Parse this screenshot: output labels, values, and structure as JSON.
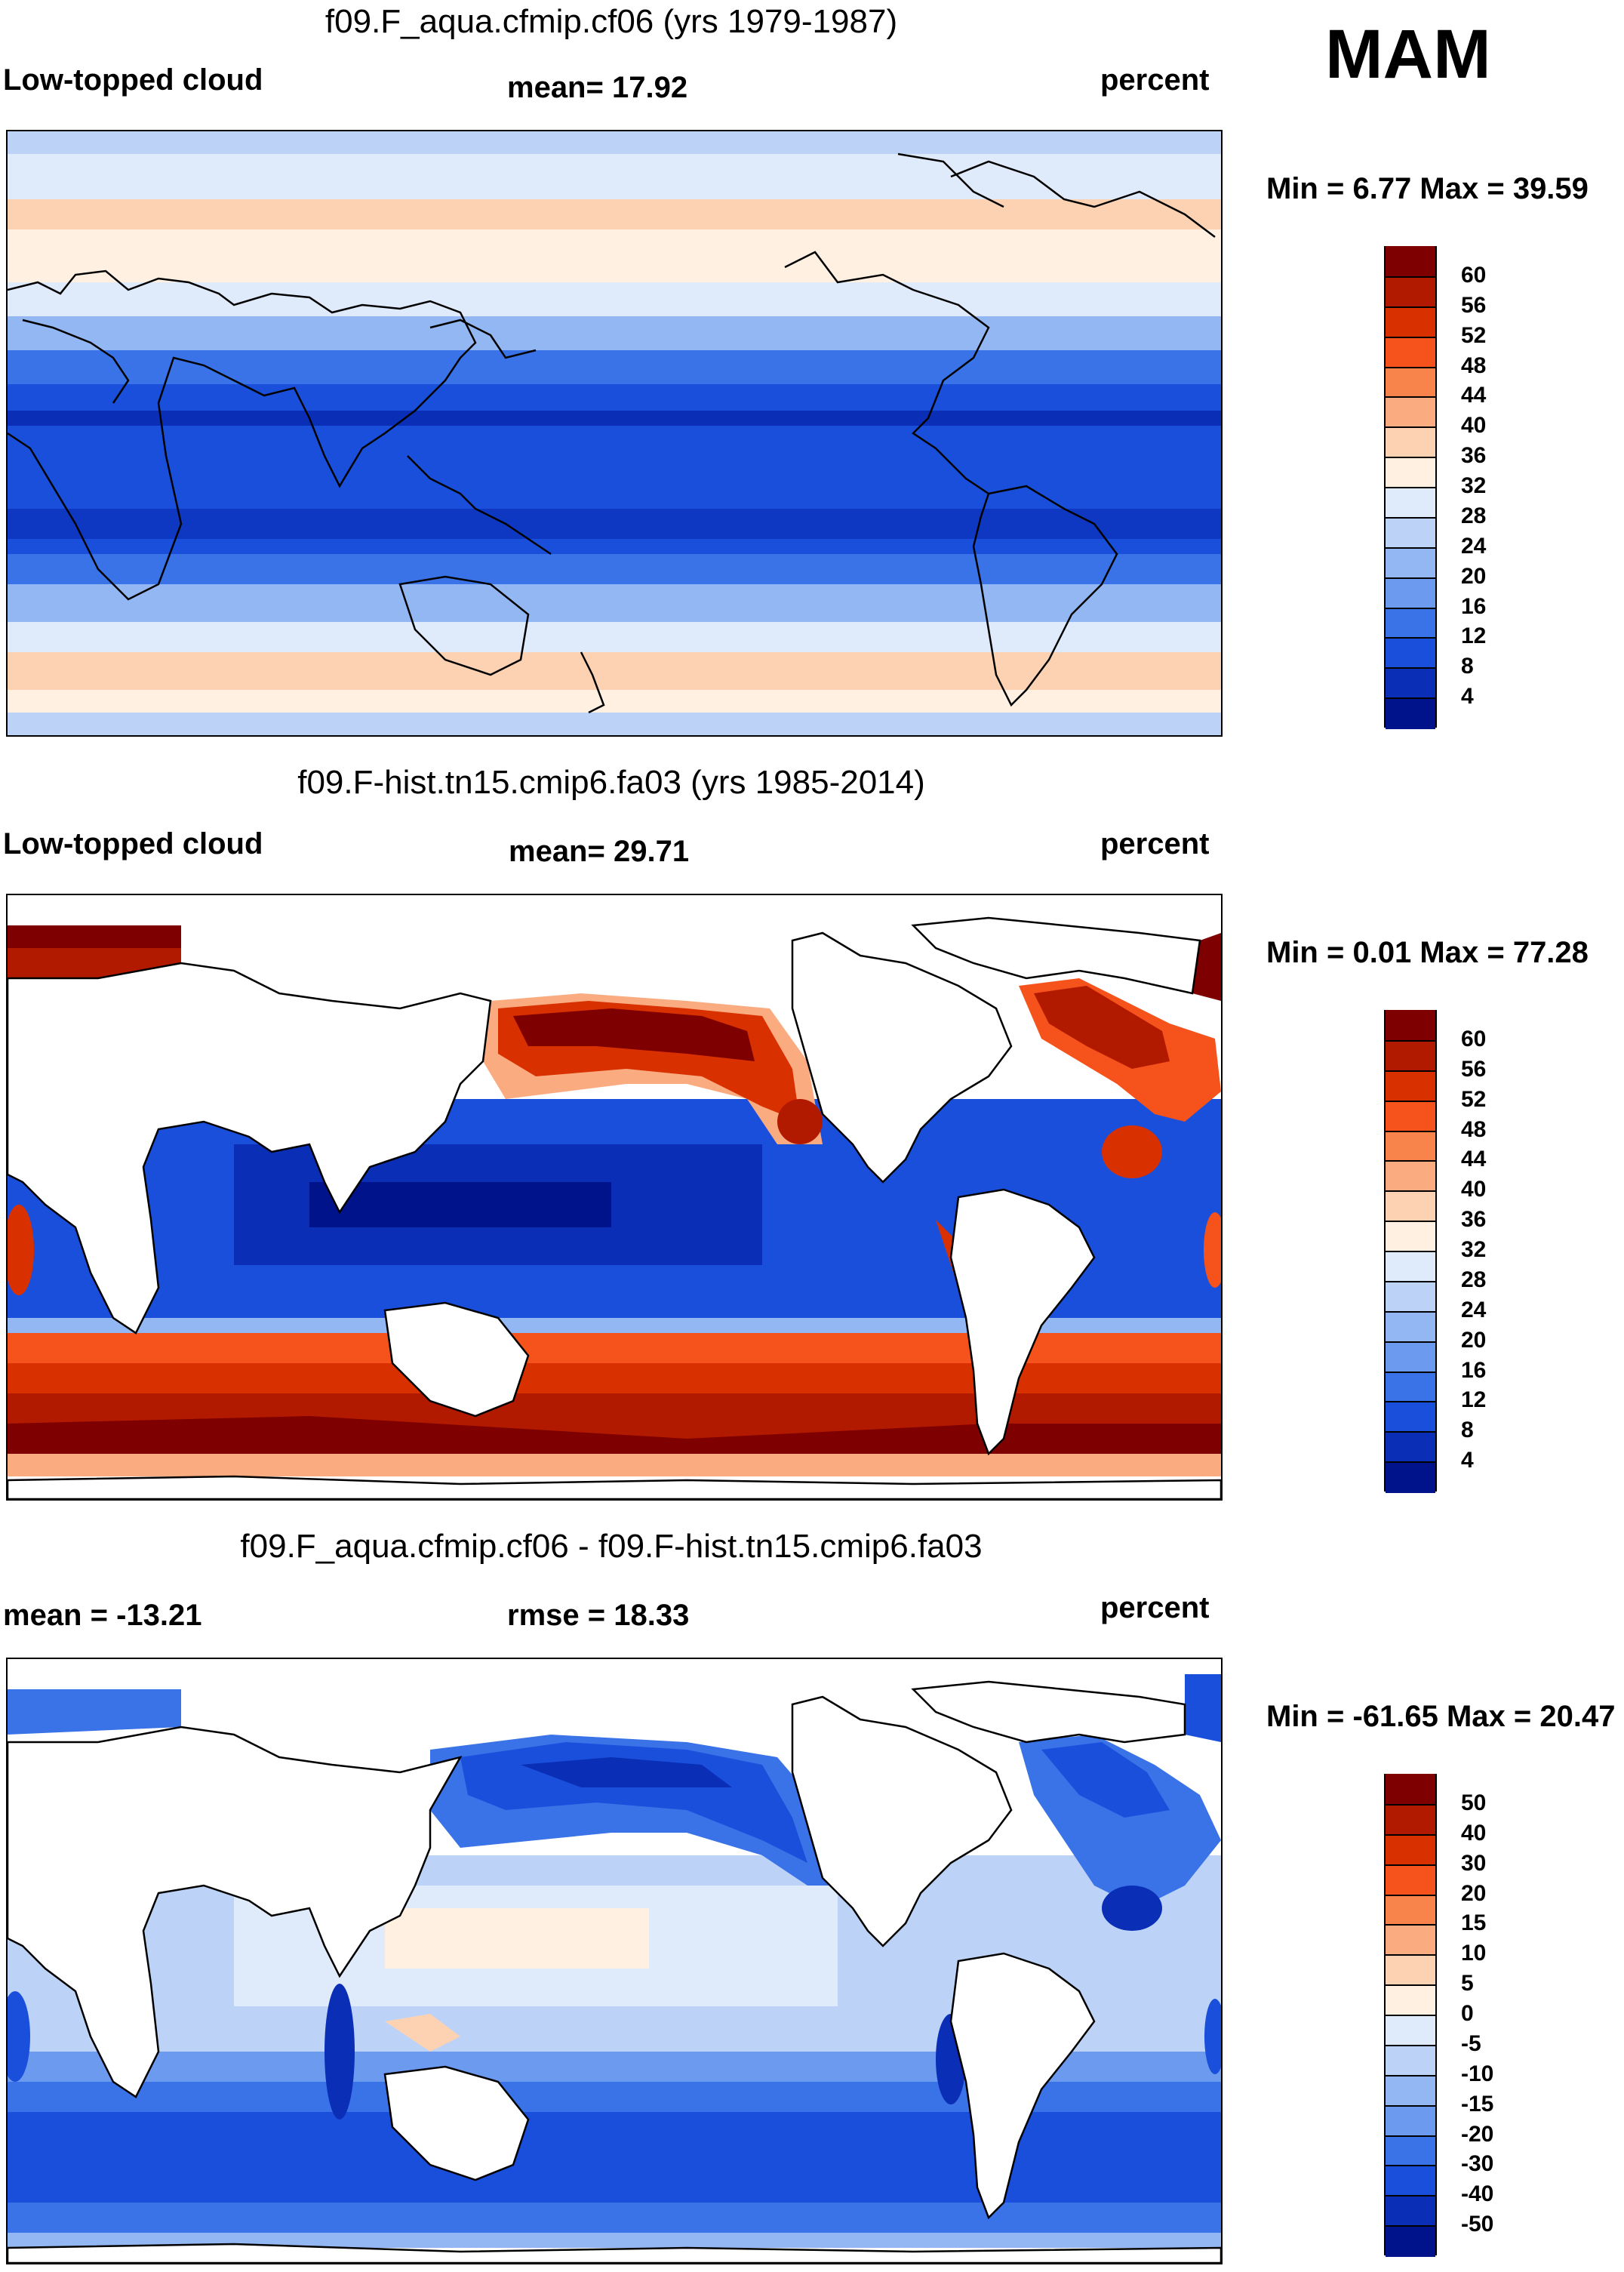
{
  "season": "MAM",
  "panels": [
    {
      "title": "f09.F_aqua.cfmip.cf06 (yrs 1979-1987)",
      "left_label": "Low-topped cloud",
      "center_label": "mean=  17.92",
      "right_label": "percent",
      "minmax": "Min =   6.77 Max =  39.59",
      "colorbar": {
        "ticks": [
          "60",
          "56",
          "52",
          "48",
          "44",
          "40",
          "36",
          "32",
          "28",
          "24",
          "20",
          "16",
          "12",
          "8",
          "4"
        ],
        "colors": [
          "#7f0000",
          "#b21a00",
          "#d93000",
          "#f5521c",
          "#f8844c",
          "#fbab80",
          "#fdd2b2",
          "#fff0e2",
          "#dfeafb",
          "#bcd3f7",
          "#93b7f2",
          "#6b9aee",
          "#3a72e8",
          "#1a4fdc",
          "#0a2eb6",
          "#00138a"
        ]
      }
    },
    {
      "title": "f09.F-hist.tn15.cmip6.fa03 (yrs 1985-2014)",
      "left_label": "Low-topped cloud",
      "center_label": "mean=  29.71",
      "right_label": "percent",
      "minmax": "Min =   0.01 Max =  77.28",
      "colorbar": {
        "ticks": [
          "60",
          "56",
          "52",
          "48",
          "44",
          "40",
          "36",
          "32",
          "28",
          "24",
          "20",
          "16",
          "12",
          "8",
          "4"
        ],
        "colors": [
          "#7f0000",
          "#b21a00",
          "#d93000",
          "#f5521c",
          "#f8844c",
          "#fbab80",
          "#fdd2b2",
          "#fff0e2",
          "#dfeafb",
          "#bcd3f7",
          "#93b7f2",
          "#6b9aee",
          "#3a72e8",
          "#1a4fdc",
          "#0a2eb6",
          "#00138a"
        ]
      }
    },
    {
      "title": "f09.F_aqua.cfmip.cf06 - f09.F-hist.tn15.cmip6.fa03",
      "left_label": "mean = -13.21",
      "center_label": "rmse =  18.33",
      "right_label": "percent",
      "minmax": "Min = -61.65 Max =  20.47",
      "colorbar": {
        "ticks": [
          "50",
          "40",
          "30",
          "20",
          "15",
          "10",
          "5",
          "0",
          "-5",
          "-10",
          "-15",
          "-20",
          "-30",
          "-40",
          "-50"
        ],
        "colors": [
          "#7f0000",
          "#b21a00",
          "#d93000",
          "#f5521c",
          "#f8844c",
          "#fbab80",
          "#fdd2b2",
          "#fff0e2",
          "#dfeafb",
          "#bcd3f7",
          "#93b7f2",
          "#6b9aee",
          "#3a72e8",
          "#1a4fdc",
          "#0a2eb6",
          "#00138a"
        ]
      }
    }
  ]
}
